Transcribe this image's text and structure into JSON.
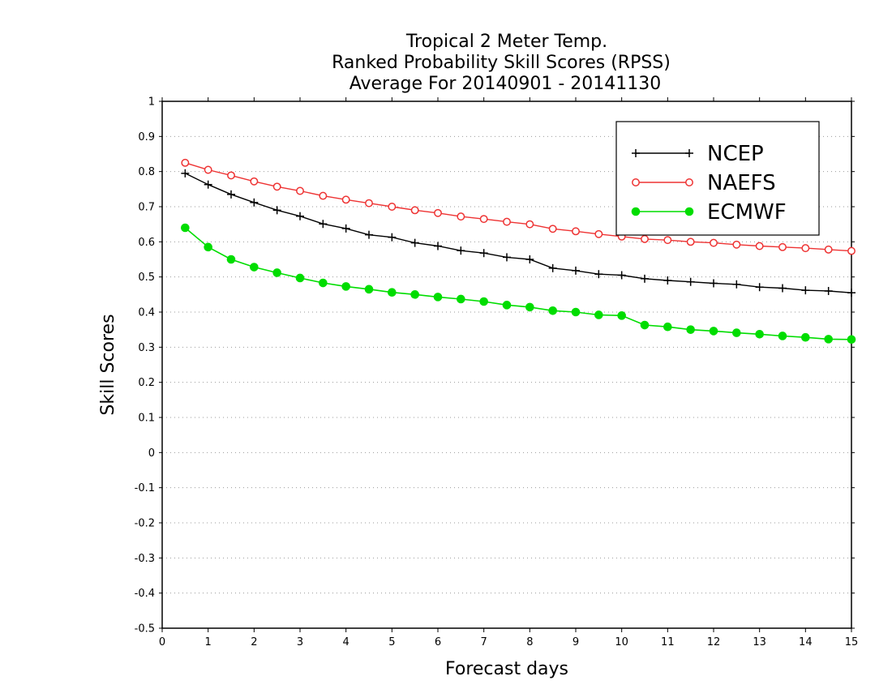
{
  "chart_data": {
    "type": "line",
    "title_lines": [
      "Tropical 2 Meter Temp.",
      "Ranked Probability Skill Scores (RPSS)",
      "Average For 20140901 - 20141130"
    ],
    "xlabel": "Forecast days",
    "ylabel": "Skill Scores",
    "xlim": [
      0,
      15
    ],
    "ylim": [
      -0.5,
      1
    ],
    "x_ticks": [
      "0",
      "1",
      "2",
      "3",
      "4",
      "5",
      "6",
      "7",
      "8",
      "9",
      "10",
      "11",
      "12",
      "13",
      "14",
      "15"
    ],
    "y_ticks": [
      "1",
      "0.9",
      "0.8",
      "0.7",
      "0.6",
      "0.5",
      "0.4",
      "0.3",
      "0.2",
      "0.1",
      "0",
      "-0.1",
      "-0.2",
      "-0.3",
      "-0.4",
      "-0.5"
    ],
    "grid": "horizontal-dotted",
    "legend_position": "top-right",
    "x": [
      0.5,
      1,
      1.5,
      2,
      2.5,
      3,
      3.5,
      4,
      4.5,
      5,
      5.5,
      6,
      6.5,
      7,
      7.5,
      8,
      8.5,
      9,
      9.5,
      10,
      10.5,
      11,
      11.5,
      12,
      12.5,
      13,
      13.5,
      14,
      14.5,
      15
    ],
    "series": [
      {
        "name": "NCEP",
        "color": "#000000",
        "marker": "plus",
        "values": [
          0.795,
          0.763,
          0.735,
          0.712,
          0.69,
          0.673,
          0.651,
          0.638,
          0.62,
          0.613,
          0.597,
          0.588,
          0.575,
          0.568,
          0.556,
          0.55,
          0.525,
          0.518,
          0.508,
          0.505,
          0.495,
          0.49,
          0.486,
          0.482,
          0.479,
          0.471,
          0.468,
          0.462,
          0.46,
          0.455
        ]
      },
      {
        "name": "NAEFS",
        "color": "#ee3333",
        "marker": "open-circle",
        "values": [
          0.825,
          0.805,
          0.789,
          0.772,
          0.757,
          0.745,
          0.731,
          0.72,
          0.71,
          0.7,
          0.69,
          0.682,
          0.672,
          0.665,
          0.657,
          0.65,
          0.637,
          0.63,
          0.622,
          0.615,
          0.608,
          0.605,
          0.6,
          0.597,
          0.592,
          0.588,
          0.585,
          0.582,
          0.578,
          0.574
        ]
      },
      {
        "name": "ECMWF",
        "color": "#00dd00",
        "marker": "filled-circle",
        "values": [
          0.64,
          0.585,
          0.55,
          0.528,
          0.512,
          0.497,
          0.483,
          0.473,
          0.465,
          0.456,
          0.45,
          0.443,
          0.437,
          0.43,
          0.42,
          0.414,
          0.404,
          0.4,
          0.392,
          0.39,
          0.363,
          0.358,
          0.35,
          0.346,
          0.341,
          0.337,
          0.332,
          0.328,
          0.323,
          0.322
        ]
      }
    ]
  }
}
